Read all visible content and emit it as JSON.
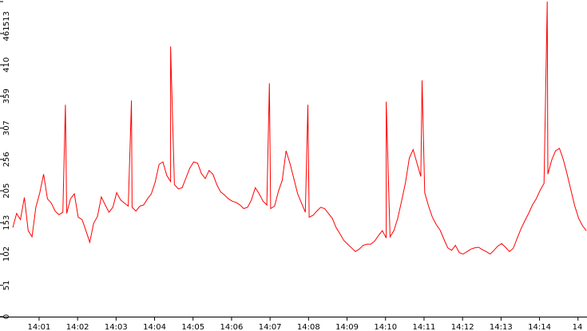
{
  "colors": {
    "series": "#ff0000",
    "axis": "#000000",
    "background": "#ffffff"
  },
  "chart_data": {
    "type": "line",
    "title": "",
    "xlabel": "",
    "ylabel": "",
    "grid": false,
    "ylim": [
      0,
      513
    ],
    "y_ticks": [
      0,
      51,
      102,
      153,
      205,
      256,
      307,
      359,
      410,
      461,
      513
    ],
    "y_tick_labels": [
      "0",
      "51",
      "102",
      "153",
      "205",
      "256",
      "307",
      "359",
      "410",
      "461",
      "513"
    ],
    "x_ticks": [
      "14:01",
      "14:02",
      "14:03",
      "14:04",
      "14:05",
      "14:06",
      "14:07",
      "14:08",
      "14:09",
      "14:10",
      "14:11",
      "14:12",
      "14:13",
      "14:14",
      "14"
    ],
    "x_range": [
      "14:00:19",
      "14:15:14"
    ],
    "series": [
      {
        "x_start": "14:00:19",
        "x_step_seconds": 6,
        "values": [
          145,
          168,
          158,
          194,
          140,
          130,
          178,
          201,
          232,
          192,
          185,
          172,
          166,
          170,
          168,
          192,
          200,
          162,
          158,
          140,
          121,
          152,
          163,
          195,
          182,
          170,
          178,
          202,
          190,
          185,
          180,
          178,
          172,
          180,
          182,
          192,
          200,
          219,
          248,
          252,
          230,
          220,
          215,
          208,
          210,
          226,
          242,
          252,
          250,
          233,
          225,
          238,
          232,
          215,
          203,
          198,
          192,
          188,
          186,
          182,
          176,
          178,
          190,
          210,
          200,
          188,
          182,
          176,
          180,
          204,
          222,
          270,
          250,
          225,
          200,
          185,
          170,
          162,
          165,
          172,
          178,
          176,
          168,
          160,
          145,
          135,
          124,
          118,
          112,
          106,
          110,
          116,
          118,
          118,
          123,
          132,
          140,
          128,
          130,
          140,
          160,
          188,
          218,
          258,
          272,
          250,
          228,
          202,
          180,
          162,
          150,
          141,
          126,
          112,
          108,
          116,
          104,
          102,
          106,
          110,
          112,
          113,
          109,
          106,
          102,
          108,
          115,
          119,
          113,
          106,
          111,
          127,
          143,
          156,
          168,
          182,
          192,
          206,
          217,
          232,
          255,
          270,
          274,
          256,
          232,
          206,
          180,
          160,
          148,
          140,
          148,
          160,
          178,
          195,
          212,
          224,
          232,
          240,
          246,
          250,
          238,
          228,
          218,
          210,
          204,
          216,
          228,
          250,
          270,
          290,
          300,
          282,
          262,
          240,
          218,
          198,
          180,
          162,
          142,
          128,
          118,
          126,
          138,
          152,
          168,
          182,
          196,
          210,
          222,
          238,
          254,
          262,
          256,
          242,
          226,
          210,
          188,
          170,
          152,
          135,
          120,
          108,
          110,
          118,
          132,
          146,
          158,
          170,
          182,
          194,
          206,
          216,
          226,
          236,
          246,
          254,
          259,
          248,
          235,
          222,
          210,
          196,
          182,
          168,
          155,
          142,
          130,
          122,
          118,
          124,
          132,
          140,
          150,
          160,
          172,
          184,
          196,
          208,
          220,
          232,
          244,
          254,
          260,
          252,
          240,
          228,
          216,
          204,
          192,
          180,
          168,
          156,
          144,
          133,
          124,
          118,
          125,
          134,
          145,
          158,
          172,
          186,
          200,
          214,
          228,
          242,
          256,
          266,
          272,
          262,
          250,
          236,
          220,
          204,
          188,
          172,
          158,
          146,
          136,
          128,
          122,
          118,
          115,
          113,
          111,
          110,
          108,
          107,
          106,
          105,
          104,
          104,
          108,
          112,
          120,
          132,
          146,
          162,
          180,
          198,
          216,
          232,
          246,
          256,
          262,
          258,
          248,
          236,
          222,
          208,
          194,
          180,
          168,
          158,
          150,
          143,
          138,
          134,
          131,
          136,
          144,
          156,
          170,
          186,
          202,
          216,
          228,
          238,
          244,
          240,
          232,
          222,
          210,
          198,
          186,
          176,
          168,
          162,
          157,
          154,
          158,
          165,
          174,
          186,
          200,
          215,
          230,
          242,
          250,
          244,
          234,
          222,
          210,
          198,
          186,
          176,
          168,
          162,
          158,
          156,
          160,
          170,
          184,
          200,
          218,
          236,
          250,
          258,
          252,
          240,
          226,
          212,
          198,
          186,
          176,
          168,
          162,
          158,
          156,
          158,
          164,
          174,
          186,
          200,
          216,
          232,
          246,
          256,
          262,
          256,
          246,
          234,
          222,
          212,
          204,
          200,
          204,
          212,
          224,
          236,
          246,
          252,
          248,
          238,
          226,
          212,
          200,
          190,
          184,
          180,
          178,
          180,
          186,
          196,
          208,
          222,
          236,
          248,
          256,
          250,
          240,
          228,
          216,
          204,
          194,
          186,
          180,
          176,
          174,
          176,
          182,
          192,
          206,
          222,
          238,
          252,
          262,
          256,
          244,
          230,
          216,
          204,
          194,
          186,
          180,
          176,
          174,
          175,
          180,
          188,
          198,
          210,
          222,
          232,
          240,
          244,
          240,
          232,
          222,
          212,
          204,
          198,
          194,
          192,
          194,
          200,
          210,
          222,
          236,
          250,
          262,
          270,
          264,
          254,
          242,
          230,
          218,
          208,
          200,
          196,
          194,
          196,
          202,
          212,
          226,
          242,
          258,
          272,
          282,
          290,
          284,
          274,
          262,
          250,
          238,
          226,
          216,
          208,
          202,
          200,
          202,
          208,
          218,
          230,
          244,
          258,
          272,
          284,
          292,
          298,
          294,
          286,
          276,
          264,
          252,
          240,
          230,
          222,
          216,
          213,
          212,
          215,
          221,
          230,
          240,
          250,
          258,
          263,
          260,
          252,
          242,
          231,
          220,
          210,
          202,
          196,
          193,
          192,
          194,
          198,
          205,
          214,
          225,
          237,
          248,
          256,
          260,
          256,
          248,
          238,
          227,
          216,
          206,
          198,
          192,
          188,
          186,
          186,
          189,
          194,
          201,
          210,
          220,
          230,
          238,
          243,
          241,
          235,
          226,
          216,
          205,
          195,
          187,
          181,
          177,
          175,
          175,
          178,
          183,
          190,
          199,
          209,
          220,
          230,
          238,
          243,
          240,
          233,
          224,
          213,
          202,
          192,
          184,
          178,
          174,
          172,
          172,
          175,
          180,
          187,
          196,
          206,
          217,
          228,
          237,
          243,
          246,
          243,
          236,
          227,
          217,
          206,
          196,
          188,
          182,
          178,
          176,
          176,
          179,
          184,
          191,
          200,
          210,
          221,
          232,
          241,
          247,
          250,
          247,
          240,
          231,
          221,
          210,
          200,
          191,
          184,
          179,
          176,
          175,
          176,
          179,
          184,
          191,
          200,
          210,
          221,
          232,
          242,
          250,
          255,
          257,
          254,
          247,
          238,
          228,
          217,
          206,
          196,
          187,
          180,
          175,
          172,
          171,
          172,
          175,
          180,
          187,
          196,
          206,
          217,
          228,
          239,
          248,
          255,
          259,
          260,
          257,
          251,
          243,
          233,
          222,
          211,
          200,
          190,
          182,
          176,
          171,
          168,
          167,
          168,
          171,
          176,
          183,
          192,
          202,
          213,
          224,
          235,
          245,
          253,
          259,
          262,
          262,
          258,
          252,
          244,
          234,
          223,
          212,
          201,
          191,
          182,
          175,
          169,
          165,
          163,
          163,
          165,
          169,
          175,
          183,
          192,
          202,
          213,
          224,
          235,
          245,
          254,
          261,
          265,
          267,
          265,
          260,
          253,
          244,
          234,
          223,
          212,
          201,
          191,
          182,
          174,
          168,
          163,
          160,
          159,
          160,
          163,
          168,
          174,
          182,
          191,
          201,
          212,
          223,
          234,
          244,
          253,
          261,
          267,
          270,
          270,
          267,
          261,
          253,
          244,
          233,
          222,
          211,
          200,
          190,
          181,
          173,
          166,
          161,
          157,
          155,
          155,
          157,
          160,
          165,
          172,
          180,
          189,
          199,
          210,
          221,
          232,
          243,
          253,
          262,
          269,
          274,
          277,
          277,
          274,
          269,
          262,
          253,
          243,
          232,
          221,
          210,
          199,
          189,
          180,
          172,
          165,
          160,
          156,
          153,
          152
        ]
      }
    ],
    "peaks": [
      {
        "x": "14:01:41",
        "y": 345
      },
      {
        "x": "14:03:24",
        "y": 352
      },
      {
        "x": "14:04:25",
        "y": 440
      },
      {
        "x": "14:06:59",
        "y": 380
      },
      {
        "x": "14:07:59",
        "y": 345
      },
      {
        "x": "14:10:01",
        "y": 350
      },
      {
        "x": "14:10:57",
        "y": 385
      },
      {
        "x": "14:14:12",
        "y": 513
      }
    ]
  }
}
